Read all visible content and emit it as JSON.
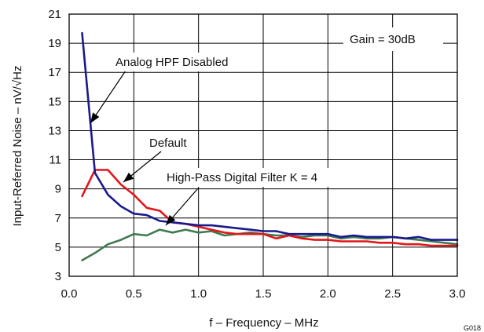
{
  "chart_data": {
    "type": "line",
    "title": "",
    "xlabel": "f – Frequency – MHz",
    "ylabel": "Input-Referred Noise – nV/√Hz",
    "xlim": [
      0.0,
      3.0
    ],
    "ylim": [
      3,
      21
    ],
    "x_ticks": [
      "0.0",
      "0.5",
      "1.0",
      "1.5",
      "2.0",
      "2.5",
      "3.0"
    ],
    "y_ticks": [
      "3",
      "5",
      "7",
      "9",
      "11",
      "13",
      "15",
      "17",
      "19",
      "21"
    ],
    "grid": true,
    "figure_id": "G018",
    "series": [
      {
        "name": "Analog HPF Disabled",
        "color": "#1a1a8c",
        "x": [
          0.1,
          0.2,
          0.3,
          0.4,
          0.5,
          0.6,
          0.7,
          0.8,
          0.9,
          1.0,
          1.1,
          1.2,
          1.3,
          1.4,
          1.5,
          1.6,
          1.7,
          1.8,
          1.9,
          2.0,
          2.1,
          2.2,
          2.3,
          2.4,
          2.5,
          2.6,
          2.7,
          2.8,
          2.9,
          3.0
        ],
        "y": [
          19.7,
          10.1,
          8.6,
          7.8,
          7.3,
          7.2,
          6.8,
          6.7,
          6.6,
          6.5,
          6.5,
          6.4,
          6.3,
          6.2,
          6.1,
          6.1,
          5.9,
          5.9,
          5.9,
          5.9,
          5.7,
          5.8,
          5.7,
          5.7,
          5.7,
          5.6,
          5.7,
          5.5,
          5.5,
          5.5
        ]
      },
      {
        "name": "Default",
        "color": "#e3161b",
        "x": [
          0.1,
          0.2,
          0.3,
          0.4,
          0.5,
          0.6,
          0.7,
          0.8,
          0.9,
          1.0,
          1.1,
          1.2,
          1.3,
          1.4,
          1.5,
          1.6,
          1.7,
          1.8,
          1.9,
          2.0,
          2.1,
          2.2,
          2.3,
          2.4,
          2.5,
          2.6,
          2.7,
          2.8,
          2.9,
          3.0
        ],
        "y": [
          8.5,
          10.3,
          10.3,
          9.3,
          8.6,
          7.7,
          7.5,
          6.7,
          6.6,
          6.4,
          6.2,
          6.0,
          5.9,
          5.9,
          5.9,
          5.6,
          5.8,
          5.6,
          5.5,
          5.5,
          5.4,
          5.4,
          5.4,
          5.3,
          5.3,
          5.2,
          5.2,
          5.1,
          5.1,
          5.1
        ]
      },
      {
        "name": "High-Pass Digital Filter K = 4",
        "color": "#3f7a4f",
        "x": [
          0.1,
          0.2,
          0.3,
          0.4,
          0.5,
          0.6,
          0.7,
          0.8,
          0.9,
          1.0,
          1.1,
          1.2,
          1.3,
          1.4,
          1.5,
          1.6,
          1.7,
          1.8,
          1.9,
          2.0,
          2.1,
          2.2,
          2.3,
          2.4,
          2.5,
          2.6,
          2.7,
          2.8,
          2.9,
          3.0
        ],
        "y": [
          4.1,
          4.6,
          5.2,
          5.5,
          5.9,
          5.8,
          6.2,
          6.0,
          6.2,
          6.0,
          6.1,
          5.8,
          5.9,
          6.0,
          5.9,
          5.8,
          5.8,
          5.7,
          5.8,
          5.8,
          5.6,
          5.7,
          5.6,
          5.6,
          5.7,
          5.6,
          5.5,
          5.4,
          5.3,
          5.2
        ]
      }
    ],
    "annotations": [
      {
        "text": "Gain = 30dB"
      },
      {
        "text": "Analog HPF Disabled"
      },
      {
        "text": "Default"
      },
      {
        "text": "High-Pass Digital Filter K = 4"
      }
    ]
  }
}
